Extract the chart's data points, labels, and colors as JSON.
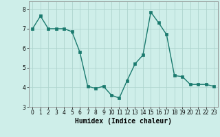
{
  "x": [
    0,
    1,
    2,
    3,
    4,
    5,
    6,
    7,
    8,
    9,
    10,
    11,
    12,
    13,
    14,
    15,
    16,
    17,
    18,
    19,
    20,
    21,
    22,
    23
  ],
  "y": [
    7.0,
    7.65,
    7.0,
    7.0,
    7.0,
    6.85,
    5.8,
    4.05,
    3.95,
    4.05,
    3.6,
    3.45,
    4.35,
    5.2,
    5.65,
    7.85,
    7.3,
    6.7,
    4.6,
    4.55,
    4.15,
    4.15,
    4.15,
    4.05
  ],
  "line_color": "#1a7a6e",
  "marker": "s",
  "marker_size": 2.2,
  "line_width": 1.0,
  "xlabel": "Humidex (Indice chaleur)",
  "ylim": [
    3.0,
    8.4
  ],
  "xlim": [
    -0.5,
    23.5
  ],
  "yticks": [
    3,
    4,
    5,
    6,
    7,
    8
  ],
  "xticks": [
    0,
    1,
    2,
    3,
    4,
    5,
    6,
    7,
    8,
    9,
    10,
    11,
    12,
    13,
    14,
    15,
    16,
    17,
    18,
    19,
    20,
    21,
    22,
    23
  ],
  "background_color": "#ceeee9",
  "grid_color": "#aed4ce",
  "tick_label_fontsize": 5.5,
  "xlabel_fontsize": 7.0
}
